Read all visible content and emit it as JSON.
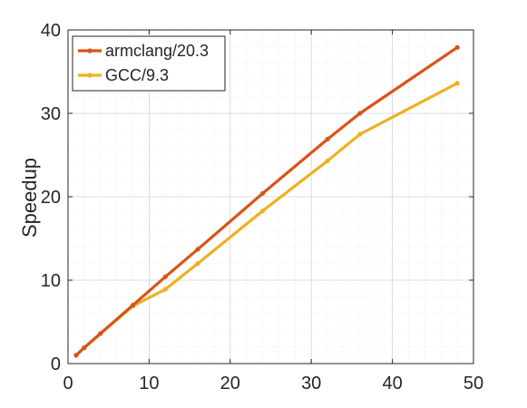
{
  "chart_data": {
    "type": "line",
    "title": "",
    "xlabel": "",
    "ylabel": "Speedup",
    "xlim": [
      0,
      50
    ],
    "ylim": [
      0,
      40
    ],
    "xticks": [
      0,
      10,
      20,
      30,
      40,
      50
    ],
    "yticks": [
      0,
      10,
      20,
      30,
      40
    ],
    "grid": "major and minor",
    "legend": "top-left",
    "series": [
      {
        "name": "armclang/20.3",
        "color": "#D95319",
        "x": [
          1,
          2,
          4,
          8,
          12,
          16,
          24,
          32,
          36,
          48
        ],
        "y": [
          1.0,
          1.9,
          3.6,
          7.0,
          10.4,
          13.7,
          20.4,
          26.9,
          30.0,
          37.9
        ]
      },
      {
        "name": "GCC/9.3",
        "color": "#EDB120",
        "x": [
          1,
          2,
          4,
          8,
          12,
          16,
          24,
          32,
          36,
          48
        ],
        "y": [
          1.0,
          1.9,
          3.6,
          6.9,
          8.9,
          12.0,
          18.3,
          24.3,
          27.5,
          33.6
        ]
      }
    ]
  }
}
